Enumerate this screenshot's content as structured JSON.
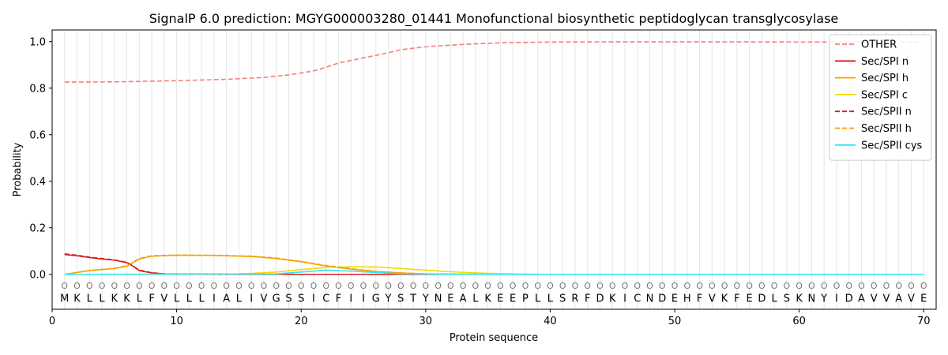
{
  "chart_data": {
    "type": "line",
    "title": "SignalP 6.0 prediction: MGYG000003280_01441 Monofunctional biosynthetic peptidoglycan transglycosylase",
    "xlabel": "Protein sequence",
    "ylabel": "Probability",
    "xlim": [
      0,
      71
    ],
    "ylim": [
      -0.15,
      1.05
    ],
    "x_ticks": [
      0,
      10,
      20,
      30,
      40,
      50,
      60,
      70
    ],
    "y_ticks": [
      0.0,
      0.2,
      0.4,
      0.6,
      0.8,
      1.0
    ],
    "x_tick_labels": [
      "0",
      "10",
      "20",
      "30",
      "40",
      "50",
      "60",
      "70"
    ],
    "y_tick_labels": [
      "0.0",
      "0.2",
      "0.4",
      "0.6",
      "0.8",
      "1.0"
    ],
    "grid": "vertical lines at each residue",
    "legend_position": "top-right",
    "sequence": [
      "M",
      "K",
      "L",
      "L",
      "K",
      "K",
      "L",
      "F",
      "V",
      "L",
      "L",
      "L",
      "I",
      "A",
      "L",
      "I",
      "V",
      "G",
      "S",
      "S",
      "I",
      "C",
      "F",
      "I",
      "I",
      "G",
      "Y",
      "S",
      "T",
      "Y",
      "N",
      "E",
      "A",
      "L",
      "K",
      "E",
      "E",
      "P",
      "L",
      "L",
      "S",
      "R",
      "F",
      "D",
      "K",
      "I",
      "C",
      "N",
      "D",
      "E",
      "H",
      "F",
      "V",
      "K",
      "F",
      "E",
      "D",
      "L",
      "S",
      "K",
      "N",
      "Y",
      "I",
      "D",
      "A",
      "V",
      "V",
      "A",
      "V",
      "E"
    ],
    "region_marker": "O",
    "series": [
      {
        "name": "OTHER",
        "color": "#f08080",
        "style": "dashed",
        "points": [
          [
            1,
            0.826
          ],
          [
            5,
            0.827
          ],
          [
            10,
            0.832
          ],
          [
            14,
            0.838
          ],
          [
            17,
            0.846
          ],
          [
            19,
            0.857
          ],
          [
            21,
            0.874
          ],
          [
            22,
            0.89
          ],
          [
            23,
            0.908
          ],
          [
            25,
            0.93
          ],
          [
            27,
            0.952
          ],
          [
            28,
            0.965
          ],
          [
            30,
            0.978
          ],
          [
            33,
            0.988
          ],
          [
            36,
            0.995
          ],
          [
            40,
            0.998
          ],
          [
            45,
            0.999
          ],
          [
            55,
            0.999
          ],
          [
            62,
            0.998
          ],
          [
            70,
            0.998
          ]
        ]
      },
      {
        "name": "Sec/SPI n",
        "color": "#e31a1c",
        "style": "solid",
        "points": [
          [
            1,
            0.085
          ],
          [
            2,
            0.08
          ],
          [
            3,
            0.072
          ],
          [
            4,
            0.066
          ],
          [
            5,
            0.061
          ],
          [
            6,
            0.05
          ],
          [
            6.5,
            0.035
          ],
          [
            7,
            0.016
          ],
          [
            8,
            0.006
          ],
          [
            9,
            0.002
          ],
          [
            10,
            0.001
          ],
          [
            20,
            0.0
          ],
          [
            70,
            0.0
          ]
        ]
      },
      {
        "name": "Sec/SPI h",
        "color": "#f5a300",
        "style": "solid",
        "points": [
          [
            1,
            0.0
          ],
          [
            2,
            0.008
          ],
          [
            3,
            0.016
          ],
          [
            5,
            0.025
          ],
          [
            6,
            0.035
          ],
          [
            7,
            0.066
          ],
          [
            8,
            0.078
          ],
          [
            10,
            0.082
          ],
          [
            13,
            0.081
          ],
          [
            16,
            0.077
          ],
          [
            18,
            0.068
          ],
          [
            20,
            0.054
          ],
          [
            22,
            0.036
          ],
          [
            24,
            0.022
          ],
          [
            26,
            0.012
          ],
          [
            28,
            0.006
          ],
          [
            30,
            0.002
          ],
          [
            35,
            0.0
          ],
          [
            70,
            0.0
          ]
        ]
      },
      {
        "name": "Sec/SPI c",
        "color": "#f5d800",
        "style": "solid",
        "points": [
          [
            1,
            0.0
          ],
          [
            14,
            0.0
          ],
          [
            16,
            0.004
          ],
          [
            18,
            0.01
          ],
          [
            20,
            0.02
          ],
          [
            22,
            0.03
          ],
          [
            24,
            0.032
          ],
          [
            26,
            0.032
          ],
          [
            28,
            0.025
          ],
          [
            30,
            0.018
          ],
          [
            32,
            0.011
          ],
          [
            34,
            0.006
          ],
          [
            36,
            0.003
          ],
          [
            40,
            0.0
          ],
          [
            70,
            0.0
          ]
        ]
      },
      {
        "name": "Sec/SPII n",
        "color": "#d42020",
        "style": "dashed",
        "points": [
          [
            1,
            0.088
          ],
          [
            2,
            0.082
          ],
          [
            3,
            0.074
          ],
          [
            4,
            0.068
          ],
          [
            5,
            0.062
          ],
          [
            6,
            0.052
          ],
          [
            6.5,
            0.036
          ],
          [
            7,
            0.018
          ],
          [
            8,
            0.007
          ],
          [
            9,
            0.002
          ],
          [
            10,
            0.001
          ],
          [
            20,
            0.0
          ],
          [
            70,
            0.0
          ]
        ]
      },
      {
        "name": "Sec/SPII h",
        "color": "#f5a300",
        "style": "dashed",
        "points": [
          [
            1,
            0.0
          ],
          [
            2,
            0.008
          ],
          [
            3,
            0.017
          ],
          [
            5,
            0.026
          ],
          [
            6,
            0.037
          ],
          [
            7,
            0.068
          ],
          [
            8,
            0.08
          ],
          [
            10,
            0.083
          ],
          [
            13,
            0.082
          ],
          [
            16,
            0.078
          ],
          [
            18,
            0.07
          ],
          [
            20,
            0.055
          ],
          [
            22,
            0.038
          ],
          [
            24,
            0.024
          ],
          [
            26,
            0.013
          ],
          [
            28,
            0.006
          ],
          [
            30,
            0.002
          ],
          [
            35,
            0.0
          ],
          [
            70,
            0.0
          ]
        ]
      },
      {
        "name": "Sec/SPII cys",
        "color": "#33e6f0",
        "style": "solid",
        "points": [
          [
            1,
            0.0
          ],
          [
            18,
            0.002
          ],
          [
            20,
            0.01
          ],
          [
            22,
            0.018
          ],
          [
            24,
            0.014
          ],
          [
            26,
            0.008
          ],
          [
            28,
            0.003
          ],
          [
            32,
            0.0
          ],
          [
            70,
            0.0
          ]
        ]
      }
    ]
  }
}
